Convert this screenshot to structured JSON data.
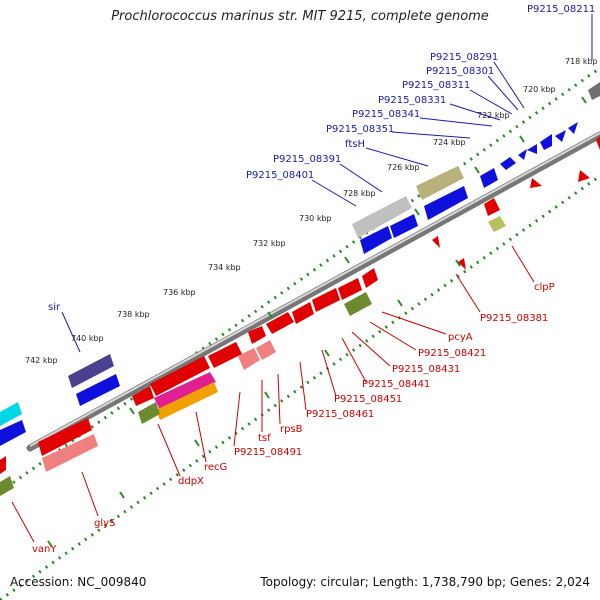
{
  "title": "Prochlorococcus marinus str. MIT 9215, complete genome",
  "footer": {
    "accession": "Accession: NC_009840",
    "topology": "Topology: circular; Length: 1,738,790 bp; Genes: 2,024"
  },
  "ticks": [
    "718 kbp",
    "720 kbp",
    "722 kbp",
    "724 kbp",
    "726 kbp",
    "728 kbp",
    "730 kbp",
    "732 kbp",
    "734 kbp",
    "736 kbp",
    "738 kbp",
    "740 kbp",
    "742 kbp"
  ],
  "gene_labels_top": [
    "P9215_08211",
    "P9215_08291",
    "P9215_08301",
    "P9215_08311",
    "P9215_08331",
    "P9215_08341",
    "P9215_08351",
    "ftsH",
    "P9215_08391",
    "P9215_08401",
    "sir"
  ],
  "gene_labels_bottom": [
    "clpP",
    "P9215_08381",
    "pcyA",
    "P9215_08421",
    "P9215_08431",
    "P9215_08441",
    "P9215_08451",
    "P9215_08461",
    "rpsB",
    "tsf",
    "P9215_08491",
    "recG",
    "ddpX",
    "glyS",
    "vanY"
  ],
  "colors": {
    "top_label": "#1a1aa6",
    "bottom_label": "#cc0000",
    "forward_gene": "#1010dd",
    "reverse_gene": "#e00000",
    "tick_dots": "#2a8a2a"
  }
}
